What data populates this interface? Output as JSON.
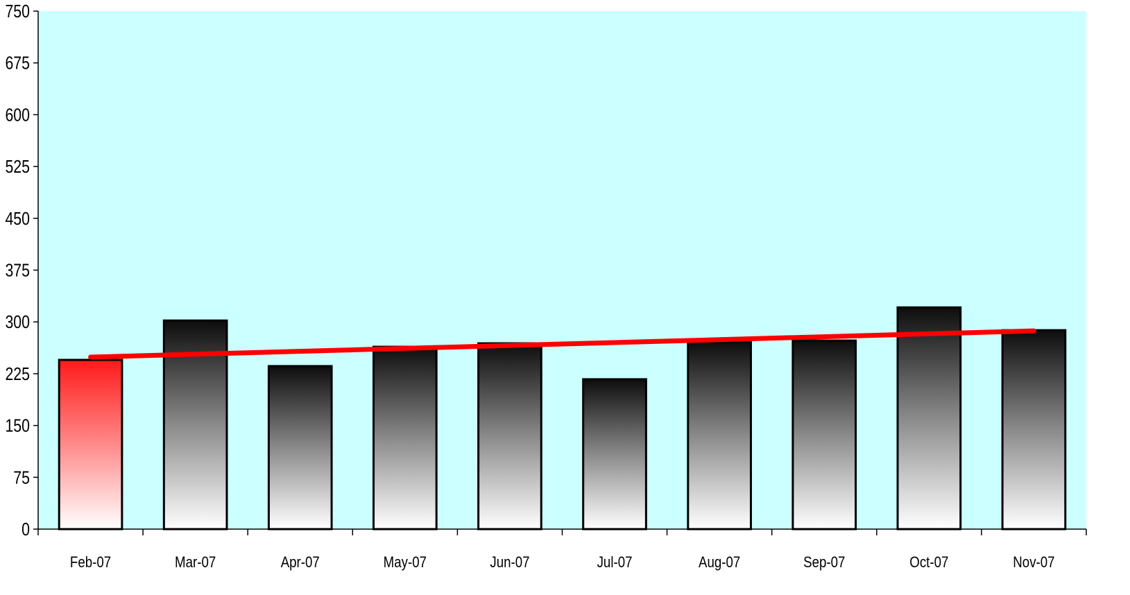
{
  "chart_data": {
    "type": "bar",
    "categories": [
      "Feb-07",
      "Mar-07",
      "Apr-07",
      "May-07",
      "Jun-07",
      "Jul-07",
      "Aug-07",
      "Sep-07",
      "Oct-07",
      "Nov-07"
    ],
    "values": [
      245,
      302,
      236,
      264,
      269,
      217,
      271,
      273,
      321,
      288
    ],
    "trendline": {
      "type": "line",
      "start": 249,
      "end": 287
    },
    "yticks": [
      0,
      75,
      150,
      225,
      300,
      375,
      450,
      525,
      600,
      675,
      750
    ],
    "ylim": [
      0,
      750
    ],
    "title": "",
    "xlabel": "",
    "ylabel": "",
    "grid": false,
    "legend": "none",
    "colors": {
      "plot_background": "#ccffff",
      "highlight_bar": "#ff1a1a",
      "bar": "#111111",
      "trendline": "#ff0000"
    }
  }
}
